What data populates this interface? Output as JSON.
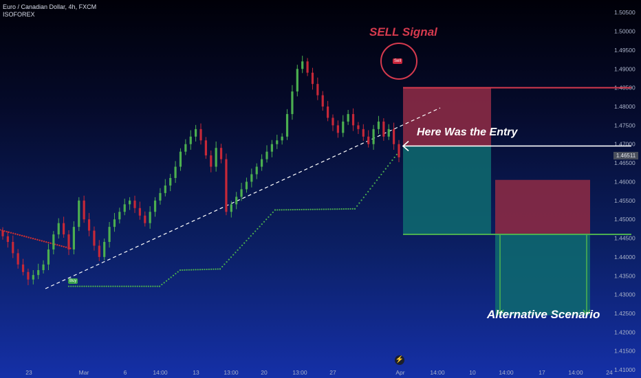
{
  "header": {
    "title": "Euro / Canadian Dollar, 4h, FXCM",
    "indicator": "ISOFOREX"
  },
  "colors": {
    "bull": "#26a69a",
    "bear": "#ef5350",
    "bull_candle": "#4caf50",
    "bear_candle": "#c62838",
    "support_dots": "#4caf50",
    "resist_dots": "#d32f2f",
    "risk_zone": "#8a2a45",
    "reward_zone": "#0e6b70",
    "annotation_red": "#d63a4e",
    "annotation_white": "#ffffff",
    "level_green": "#4caf50"
  },
  "annotations": {
    "sell_signal": "SELL Signal",
    "sell_tag": "Sell",
    "buy_tag": "Buy",
    "entry_note": "Here Was the Entry",
    "alt_scenario": "Alternative Scenario",
    "logo_icon": "tradingview-bolt-icon"
  },
  "current_price": "1.46511",
  "chart_data": {
    "type": "candlestick",
    "symbol": "EURCAD",
    "timeframe": "4h",
    "y_ticks": [
      "1.50500",
      "1.50000",
      "1.49500",
      "1.49000",
      "1.48500",
      "1.48000",
      "1.47500",
      "1.47000",
      "1.46500",
      "1.46000",
      "1.45500",
      "1.45000",
      "1.44500",
      "1.44000",
      "1.43500",
      "1.43000",
      "1.42500",
      "1.42000",
      "1.41500",
      "1.41000"
    ],
    "x_ticks": [
      "23",
      "Mar",
      "6",
      "14:00",
      "13",
      "13:00",
      "20",
      "13:00",
      "27",
      "Apr",
      "14:00",
      "10",
      "14:00",
      "17",
      "14:00",
      "24"
    ],
    "ylim": [
      1.408,
      1.5065
    ],
    "closes": [
      1.4455,
      1.444,
      1.441,
      1.438,
      1.436,
      1.434,
      1.4352,
      1.4365,
      1.438,
      1.442,
      1.446,
      1.449,
      1.446,
      1.442,
      1.448,
      1.455,
      1.45,
      1.447,
      1.443,
      1.44,
      1.444,
      1.448,
      1.45,
      1.452,
      1.454,
      1.455,
      1.453,
      1.451,
      1.449,
      1.452,
      1.455,
      1.457,
      1.459,
      1.461,
      1.464,
      1.468,
      1.47,
      1.472,
      1.474,
      1.471,
      1.467,
      1.464,
      1.469,
      1.466,
      1.452,
      1.454,
      1.456,
      1.458,
      1.46,
      1.462,
      1.464,
      1.466,
      1.468,
      1.47,
      1.471,
      1.472,
      1.478,
      1.484,
      1.49,
      1.492,
      1.489,
      1.486,
      1.483,
      1.48,
      1.477,
      1.475,
      1.473,
      1.476,
      1.478,
      1.475,
      1.474,
      1.472,
      1.47,
      1.474,
      1.476,
      1.472,
      1.474,
      1.47,
      1.4665
    ],
    "sell_level": 1.485,
    "entry_level": 1.4695,
    "take_profit": 1.446,
    "alt_entry_zone": [
      1.4605,
      1.446
    ],
    "alt_target": 1.4245,
    "trendline": {
      "from": [
        1.43
      ],
      "to": [
        1.479
      ]
    },
    "support_dots": [
      1.432,
      1.432,
      1.434,
      1.4365,
      1.44,
      1.448,
      1.453,
      1.453,
      1.458,
      1.462,
      1.467
    ],
    "resist_dots": [
      1.448,
      1.446,
      1.444,
      1.442
    ]
  }
}
